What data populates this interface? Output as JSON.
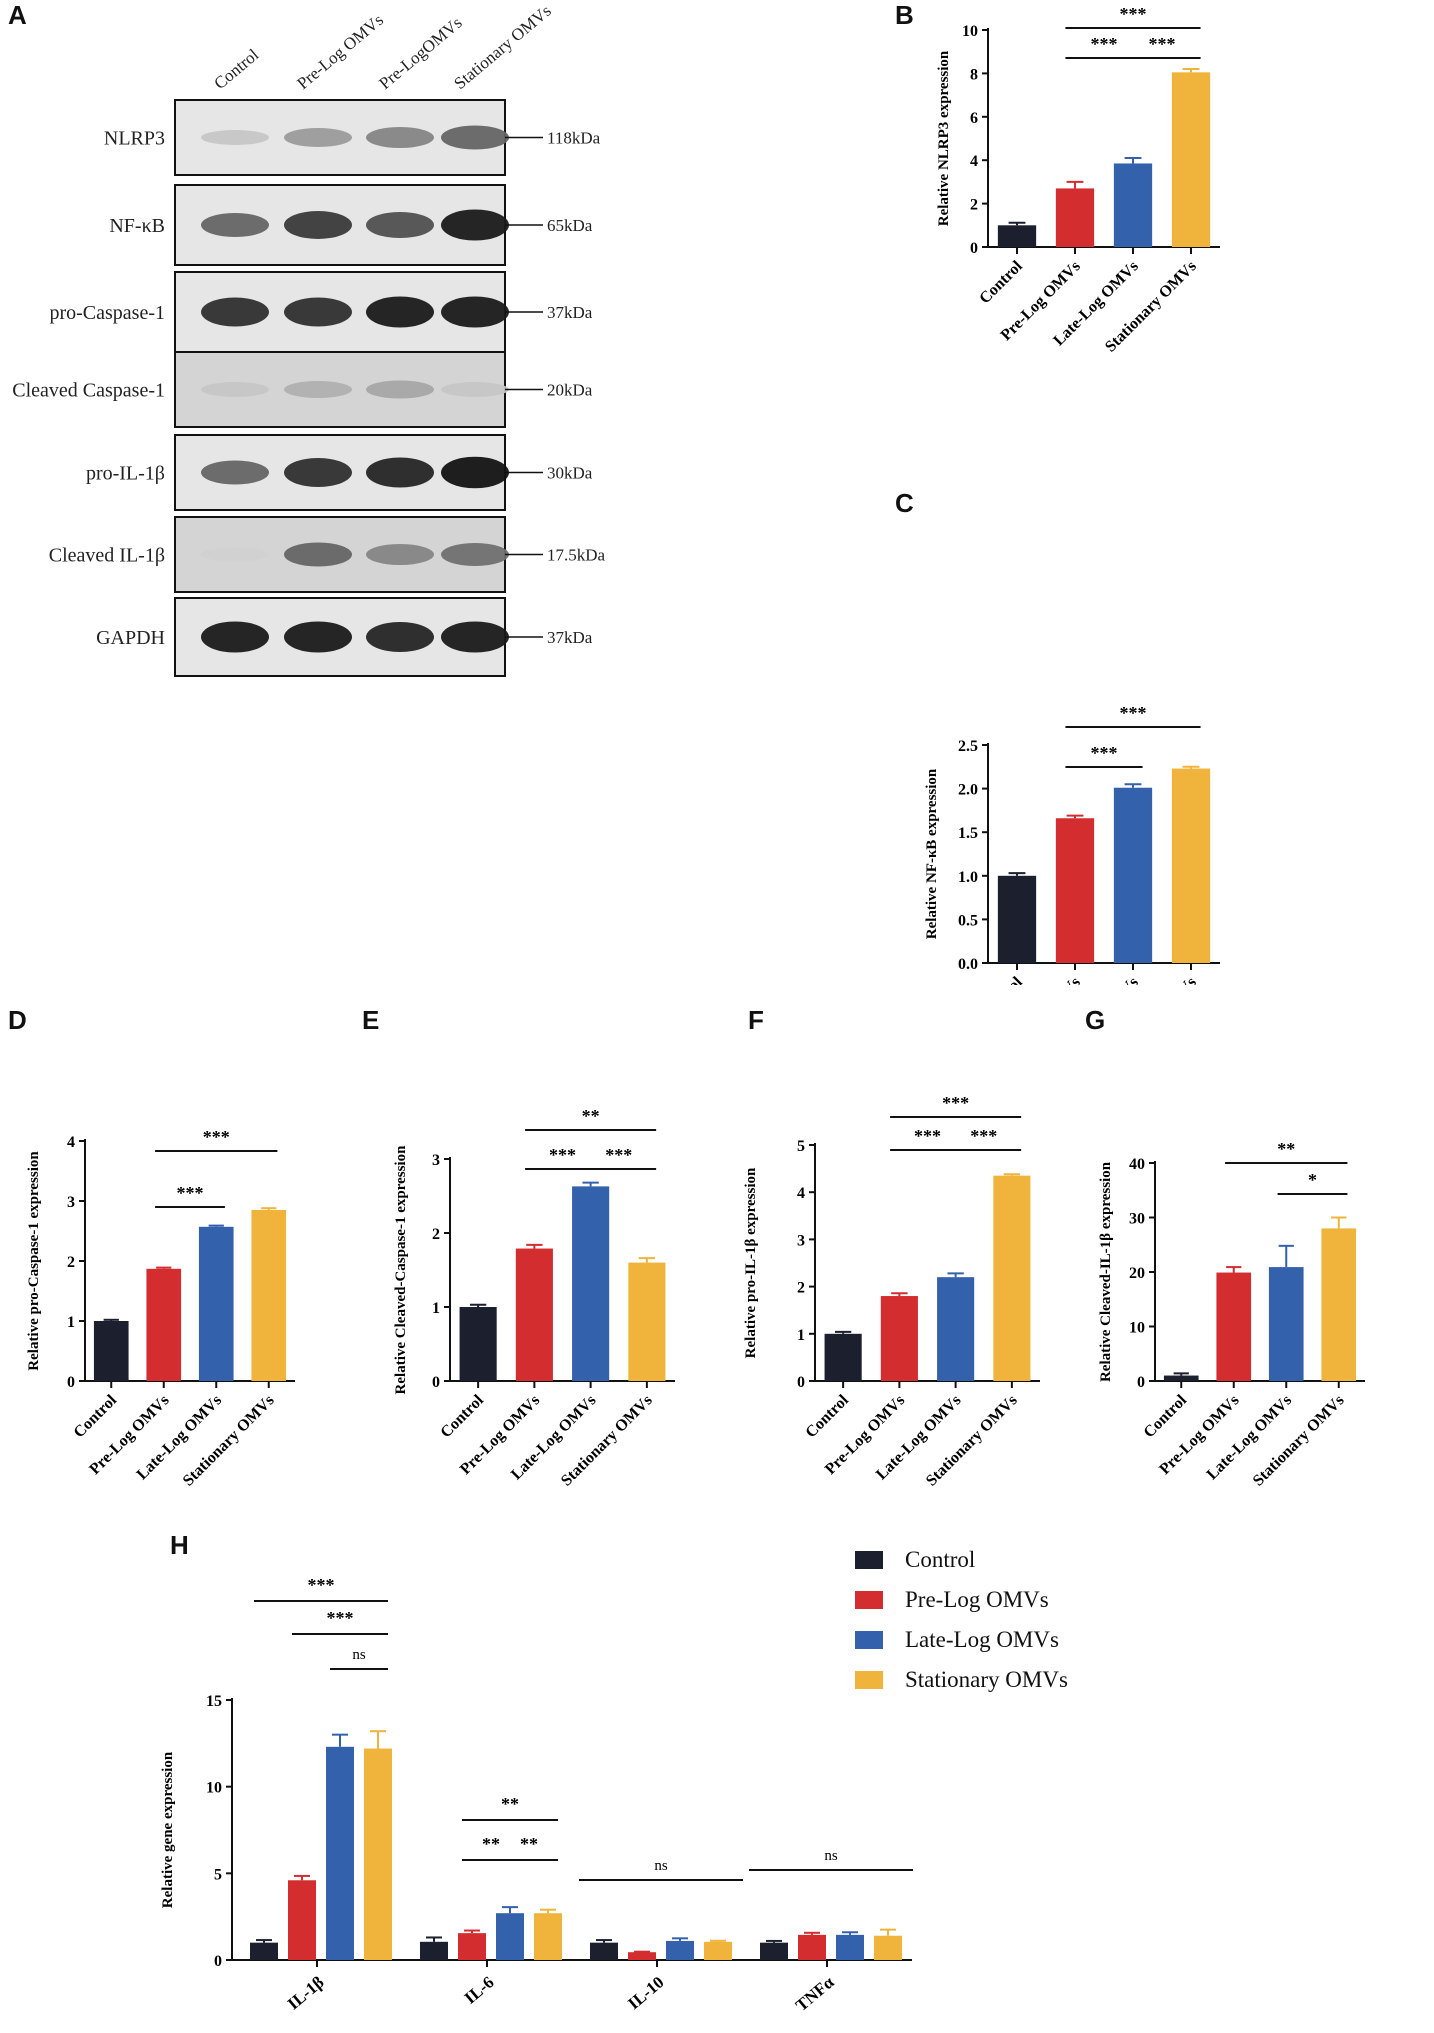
{
  "panel_letters": {
    "A": "A",
    "B": "B",
    "C": "C",
    "D": "D",
    "E": "E",
    "F": "F",
    "G": "G",
    "H": "H"
  },
  "colors": {
    "control": "#1c1f2e",
    "prelog": "#d42d30",
    "latelog": "#3461ac",
    "stationary": "#f0b43c"
  },
  "western_blot": {
    "lanes": [
      "Control",
      "Pre-Log OMVs",
      "Pre-LogOMVs",
      "Stationary OMVs"
    ],
    "rows": [
      {
        "protein": "NLRP3",
        "size": "118kDa",
        "intensity": [
          0.15,
          0.35,
          0.45,
          0.6
        ]
      },
      {
        "protein": "NF-κB",
        "size": "65kDa",
        "intensity": [
          0.6,
          0.8,
          0.7,
          0.95
        ]
      },
      {
        "protein": "pro-Caspase-1",
        "size": "37kDa",
        "intensity": [
          0.85,
          0.85,
          0.95,
          0.95
        ]
      },
      {
        "protein": "Cleaved Caspase-1",
        "size": "20kDa",
        "intensity": [
          0.15,
          0.25,
          0.3,
          0.15
        ]
      },
      {
        "protein": "pro-IL-1β",
        "size": "30kDa",
        "intensity": [
          0.6,
          0.85,
          0.9,
          0.98
        ]
      },
      {
        "protein": "Cleaved IL-1β",
        "size": "17.5kDa",
        "intensity": [
          0.1,
          0.6,
          0.45,
          0.55
        ]
      },
      {
        "protein": "GAPDH",
        "size": "37kDa",
        "intensity": [
          0.95,
          0.95,
          0.9,
          0.95
        ]
      }
    ]
  },
  "chart_data": [
    {
      "id": "B",
      "type": "bar",
      "categories": [
        "Control",
        "Pre-Log OMVs",
        "Late-Log OMVs",
        "Stationary OMVs"
      ],
      "values": [
        1.0,
        2.7,
        3.85,
        8.05
      ],
      "errors": [
        0.12,
        0.3,
        0.25,
        0.15
      ],
      "ylabel": "Relative NLRP3 expression",
      "ylim": [
        0,
        10
      ],
      "yticks": [
        0,
        2,
        4,
        6,
        8,
        10
      ],
      "sig": [
        {
          "from": 1,
          "to": 2,
          "label": "***"
        },
        {
          "from": 2,
          "to": 3,
          "label": "***"
        },
        {
          "from": 1,
          "to": 3,
          "label": "***"
        }
      ]
    },
    {
      "id": "C",
      "type": "bar",
      "categories": [
        "Control",
        "Pre-Log OMVs",
        "Late-Log OMVs",
        "Stationary OMVs"
      ],
      "values": [
        1.0,
        1.66,
        2.01,
        2.23
      ],
      "errors": [
        0.03,
        0.03,
        0.04,
        0.02
      ],
      "ylabel": "Relative NF-κB expression",
      "ylim": [
        0,
        2.5
      ],
      "yticks": [
        "0.0",
        "0.5",
        "1.0",
        "1.5",
        "2.0",
        "2.5"
      ],
      "sig": [
        {
          "from": 1,
          "to": 2,
          "label": "***"
        },
        {
          "from": 1,
          "to": 3,
          "label": "***"
        }
      ]
    },
    {
      "id": "D",
      "type": "bar",
      "categories": [
        "Control",
        "Pre-Log OMVs",
        "Late-Log OMVs",
        "Stationary OMVs"
      ],
      "values": [
        1.0,
        1.87,
        2.57,
        2.85
      ],
      "errors": [
        0.02,
        0.02,
        0.02,
        0.03
      ],
      "ylabel": "Relative pro-Caspase-1 expression",
      "ylim": [
        0,
        4
      ],
      "yticks": [
        0,
        1,
        2,
        3,
        4
      ],
      "sig": [
        {
          "from": 1,
          "to": 2,
          "label": "***"
        },
        {
          "from": 1,
          "to": 3,
          "label": "***"
        }
      ]
    },
    {
      "id": "E",
      "type": "bar",
      "categories": [
        "Control",
        "Pre-Log OMVs",
        "Late-Log OMVs",
        "Stationary OMVs"
      ],
      "values": [
        1.0,
        1.79,
        2.63,
        1.6
      ],
      "errors": [
        0.03,
        0.05,
        0.05,
        0.06
      ],
      "ylabel": "Relative Cleaved-Caspase-1 expression",
      "ylim": [
        0,
        3
      ],
      "yticks": [
        0,
        1,
        2,
        3
      ],
      "sig": [
        {
          "from": 1,
          "to": 2,
          "label": "***"
        },
        {
          "from": 2,
          "to": 3,
          "label": "***"
        },
        {
          "from": 1,
          "to": 3,
          "label": "**"
        }
      ]
    },
    {
      "id": "F",
      "type": "bar",
      "categories": [
        "Control",
        "Pre-Log OMVs",
        "Late-Log OMVs",
        "Stationary OMVs"
      ],
      "values": [
        1.0,
        1.8,
        2.2,
        4.35
      ],
      "errors": [
        0.04,
        0.06,
        0.08,
        0.03
      ],
      "ylabel": "Relative pro-IL-1β expression",
      "ylim": [
        0,
        5
      ],
      "yticks": [
        0,
        1,
        2,
        3,
        4,
        5
      ],
      "sig": [
        {
          "from": 1,
          "to": 2,
          "label": "***"
        },
        {
          "from": 2,
          "to": 3,
          "label": "***"
        },
        {
          "from": 1,
          "to": 3,
          "label": "***"
        }
      ]
    },
    {
      "id": "G",
      "type": "bar",
      "categories": [
        "Control",
        "Pre-Log OMVs",
        "Late-Log OMVs",
        "Stationary OMVs"
      ],
      "values": [
        1.0,
        19.9,
        20.9,
        28.0
      ],
      "errors": [
        0.4,
        1.0,
        3.9,
        2.0
      ],
      "ylabel": "Relative Cleaved-IL-1β expression",
      "ylim": [
        0,
        40
      ],
      "yticks": [
        0,
        10,
        20,
        30,
        40
      ],
      "sig": [
        {
          "from": 2,
          "to": 3,
          "label": "*"
        },
        {
          "from": 1,
          "to": 3,
          "label": "**"
        }
      ]
    },
    {
      "id": "H",
      "type": "grouped-bar",
      "categories": [
        "IL-1β",
        "IL-6",
        "IL-10",
        "TNFα"
      ],
      "ylabel": "Relative  gene expression",
      "ylim": [
        0,
        15
      ],
      "yticks": [
        0,
        5,
        10,
        15
      ],
      "series": [
        {
          "name": "Control",
          "values": [
            1.0,
            1.05,
            1.0,
            1.0
          ],
          "errors": [
            0.15,
            0.25,
            0.15,
            0.1
          ]
        },
        {
          "name": "Pre-Log OMVs",
          "values": [
            4.6,
            1.55,
            0.45,
            1.45
          ],
          "errors": [
            0.25,
            0.15,
            0.03,
            0.12
          ]
        },
        {
          "name": "Late-Log OMVs",
          "values": [
            12.3,
            2.7,
            1.1,
            1.45
          ],
          "errors": [
            0.7,
            0.35,
            0.15,
            0.15
          ]
        },
        {
          "name": "Stationary OMVs",
          "values": [
            12.2,
            2.7,
            1.05,
            1.4
          ],
          "errors": [
            1.0,
            0.2,
            0.06,
            0.35
          ]
        }
      ],
      "sig": [
        {
          "group": 0,
          "from": 2,
          "to": 3,
          "label": "ns",
          "level": 0
        },
        {
          "group": 0,
          "from": 1,
          "to": 3,
          "label": "***",
          "level": 1
        },
        {
          "group": 0,
          "from": 0,
          "to": 3,
          "label": "***",
          "level": 2
        },
        {
          "group": 1,
          "from": 1,
          "to": 2,
          "label": "**",
          "level": 0
        },
        {
          "group": 1,
          "from": 2,
          "to": 3,
          "label": "**",
          "level": 0
        },
        {
          "group": 1,
          "from": 1,
          "to": 3,
          "label": "**",
          "level": 1
        },
        {
          "group": 2,
          "from": 0,
          "to": 3,
          "label": "ns",
          "level": 0
        },
        {
          "group": 3,
          "from": 0,
          "to": 3,
          "label": "ns",
          "level": 0
        }
      ],
      "legend": [
        "Control",
        "Pre-Log OMVs",
        "Late-Log OMVs",
        "Stationary OMVs"
      ]
    }
  ]
}
